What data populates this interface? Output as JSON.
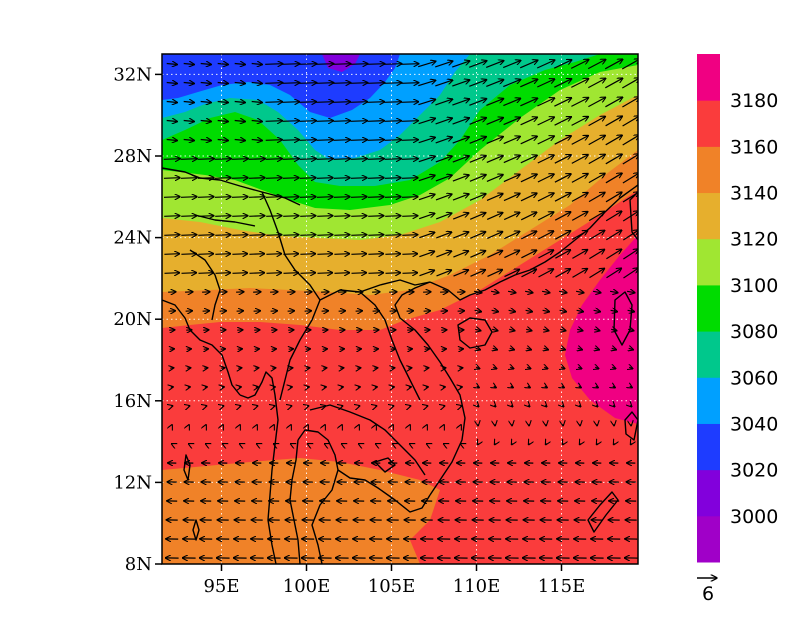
{
  "chart_data": {
    "type": "heatmap",
    "title": "",
    "xlabel": "",
    "ylabel": "",
    "x_ticks": [
      "95E",
      "100E",
      "105E",
      "110E",
      "115E"
    ],
    "x_tick_values": [
      95,
      100,
      105,
      110,
      115
    ],
    "y_ticks": [
      "8N",
      "12N",
      "16N",
      "20N",
      "24N",
      "28N",
      "32N"
    ],
    "y_tick_values": [
      8,
      12,
      16,
      20,
      24,
      28,
      32
    ],
    "xlim": [
      91.5,
      119.5
    ],
    "ylim": [
      8,
      33
    ],
    "grid": true,
    "colorbar": {
      "levels": [
        3000,
        3020,
        3040,
        3060,
        3080,
        3100,
        3120,
        3140,
        3160,
        3180
      ],
      "labels": [
        "3000",
        "3020",
        "3040",
        "3060",
        "3080",
        "3100",
        "3120",
        "3140",
        "3160",
        "3180"
      ],
      "colors": [
        "#a000c8",
        "#8200dc",
        "#1e3cff",
        "#00a0ff",
        "#00c88c",
        "#00dc00",
        "#a0e632",
        "#e6af2d",
        "#f08228",
        "#fa3c3c",
        "#f00082"
      ],
      "placement": "right"
    },
    "vector_reference": {
      "label": "6",
      "magnitude": 6
    },
    "colors": {
      "coastline": "#000000",
      "vectors": "#000000"
    }
  }
}
